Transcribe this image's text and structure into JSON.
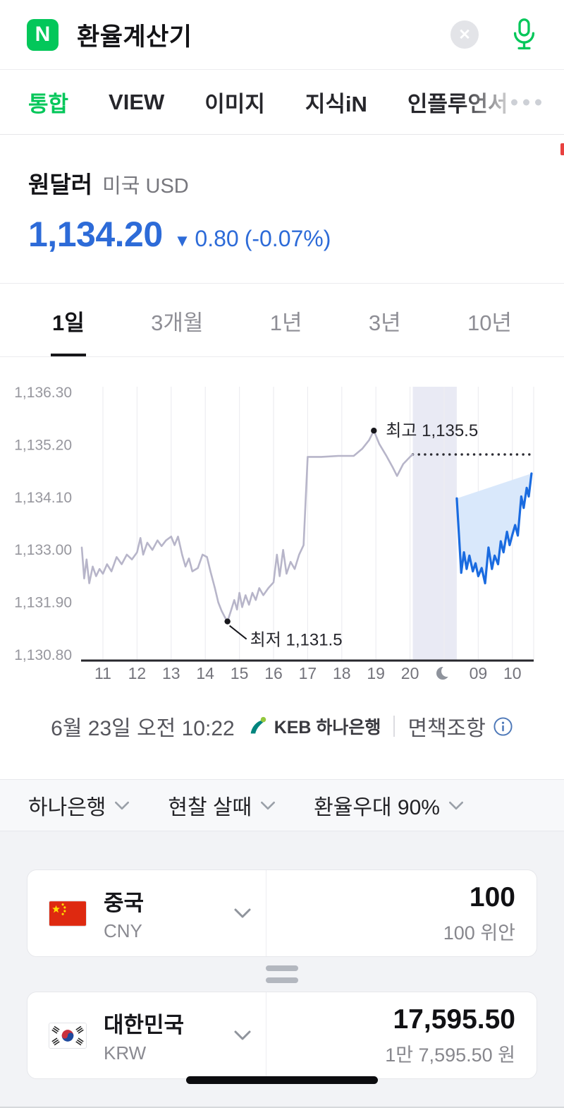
{
  "colors": {
    "naver_green": "#03c75a",
    "price_blue": "#2d6bd8",
    "previous_line": "#b7b5c9",
    "current_line": "#1a6be0",
    "current_fill": "#d9e8fb",
    "night_band": "#e9eaf4"
  },
  "icons": {
    "clear": "close-icon",
    "mic": "microphone-icon",
    "more": "ellipsis-dots-icon",
    "moon": "crescent-moon-icon",
    "info": "info-circle-icon",
    "swap": "equals-swap-icon",
    "chevron": "chevron-down-icon"
  },
  "header": {
    "logo_letter": "N",
    "query": "환율계산기"
  },
  "tabs": {
    "items": [
      {
        "label": "통합",
        "active": true
      },
      {
        "label": "VIEW",
        "active": false
      },
      {
        "label": "이미지",
        "active": false
      },
      {
        "label": "지식iN",
        "active": false
      },
      {
        "label": "인플루언서",
        "active": false
      }
    ]
  },
  "quote": {
    "title": "원달러",
    "subtitle": "미국 USD",
    "price": "1,134.20",
    "arrow": "▼",
    "change": "0.80",
    "change_pct": "(-0.07%)"
  },
  "period_tabs": [
    {
      "label": "1일",
      "active": true
    },
    {
      "label": "3개월",
      "active": false
    },
    {
      "label": "1년",
      "active": false
    },
    {
      "label": "3년",
      "active": false
    },
    {
      "label": "10년",
      "active": false
    }
  ],
  "chart_data": {
    "type": "line",
    "title": "원달러 1일 환율 추이",
    "y_ticks": [
      "1,136.30",
      "1,135.20",
      "1,134.10",
      "1,133.00",
      "1,131.90",
      "1,130.80"
    ],
    "y_values": [
      1136.3,
      1135.2,
      1134.1,
      1133.0,
      1131.9,
      1130.8
    ],
    "ylim": [
      1130.68,
      1136.42
    ],
    "x_ticks": [
      "11",
      "12",
      "13",
      "14",
      "15",
      "16",
      "17",
      "18",
      "19",
      "20",
      "moon",
      "09",
      "10"
    ],
    "night_band": [
      9.08,
      10.37
    ],
    "prev_close": 1135.0,
    "high": "1,135.5",
    "low": "1,131.5",
    "fill_color": "#d9e8fb",
    "night_color": "#e9eaf4",
    "annotations": [
      {
        "label": "최고 1,135.5",
        "x": 7.94,
        "y": 1135.5,
        "pos": "right"
      },
      {
        "label": "최저 1,131.5",
        "x": 3.65,
        "y": 1131.5,
        "pos": "below"
      }
    ],
    "series": [
      {
        "name": "previous-session",
        "color": "#b7b5c9",
        "width": 2.6,
        "points": [
          [
            -0.62,
            1133.05
          ],
          [
            -0.55,
            1132.4
          ],
          [
            -0.48,
            1132.8
          ],
          [
            -0.4,
            1132.3
          ],
          [
            -0.3,
            1132.65
          ],
          [
            -0.2,
            1132.45
          ],
          [
            -0.1,
            1132.6
          ],
          [
            0,
            1132.5
          ],
          [
            0.12,
            1132.7
          ],
          [
            0.25,
            1132.55
          ],
          [
            0.4,
            1132.85
          ],
          [
            0.55,
            1132.7
          ],
          [
            0.7,
            1132.9
          ],
          [
            0.85,
            1132.8
          ],
          [
            1.0,
            1132.95
          ],
          [
            1.1,
            1133.25
          ],
          [
            1.18,
            1132.9
          ],
          [
            1.3,
            1133.15
          ],
          [
            1.45,
            1133.0
          ],
          [
            1.6,
            1133.2
          ],
          [
            1.72,
            1133.08
          ],
          [
            1.85,
            1133.2
          ],
          [
            2.0,
            1133.28
          ],
          [
            2.1,
            1133.1
          ],
          [
            2.2,
            1133.28
          ],
          [
            2.32,
            1132.9
          ],
          [
            2.42,
            1132.65
          ],
          [
            2.52,
            1132.82
          ],
          [
            2.62,
            1132.55
          ],
          [
            2.78,
            1132.62
          ],
          [
            2.92,
            1132.9
          ],
          [
            3.05,
            1132.85
          ],
          [
            3.15,
            1132.55
          ],
          [
            3.28,
            1132.2
          ],
          [
            3.38,
            1131.9
          ],
          [
            3.48,
            1131.72
          ],
          [
            3.58,
            1131.58
          ],
          [
            3.65,
            1131.5
          ],
          [
            3.75,
            1131.72
          ],
          [
            3.85,
            1131.95
          ],
          [
            3.93,
            1131.75
          ],
          [
            4.0,
            1132.1
          ],
          [
            4.08,
            1131.8
          ],
          [
            4.18,
            1132.05
          ],
          [
            4.28,
            1131.85
          ],
          [
            4.38,
            1132.1
          ],
          [
            4.48,
            1131.95
          ],
          [
            4.58,
            1132.2
          ],
          [
            4.7,
            1132.05
          ],
          [
            4.85,
            1132.2
          ],
          [
            5.0,
            1132.32
          ],
          [
            5.1,
            1132.9
          ],
          [
            5.18,
            1132.45
          ],
          [
            5.28,
            1133.0
          ],
          [
            5.38,
            1132.5
          ],
          [
            5.5,
            1132.75
          ],
          [
            5.62,
            1132.6
          ],
          [
            5.75,
            1132.9
          ],
          [
            5.88,
            1133.1
          ],
          [
            6.0,
            1134.95
          ],
          [
            6.4,
            1134.95
          ],
          [
            6.9,
            1134.97
          ],
          [
            7.35,
            1134.97
          ],
          [
            7.6,
            1135.12
          ],
          [
            7.8,
            1135.3
          ],
          [
            7.94,
            1135.5
          ],
          [
            8.1,
            1135.22
          ],
          [
            8.3,
            1134.98
          ],
          [
            8.5,
            1134.72
          ],
          [
            8.62,
            1134.55
          ],
          [
            8.8,
            1134.8
          ],
          [
            9.0,
            1134.95
          ],
          [
            9.08,
            1135.0
          ]
        ]
      },
      {
        "name": "current-session",
        "color": "#1a6be0",
        "width": 3.2,
        "points": [
          [
            10.37,
            1134.08
          ],
          [
            10.5,
            1132.52
          ],
          [
            10.58,
            1132.95
          ],
          [
            10.66,
            1132.6
          ],
          [
            10.74,
            1132.88
          ],
          [
            10.84,
            1132.55
          ],
          [
            10.92,
            1132.72
          ],
          [
            11.0,
            1132.45
          ],
          [
            11.1,
            1132.62
          ],
          [
            11.2,
            1132.3
          ],
          [
            11.3,
            1133.05
          ],
          [
            11.4,
            1132.6
          ],
          [
            11.48,
            1132.88
          ],
          [
            11.58,
            1132.7
          ],
          [
            11.66,
            1133.18
          ],
          [
            11.74,
            1132.95
          ],
          [
            11.84,
            1133.38
          ],
          [
            11.92,
            1133.1
          ],
          [
            12.0,
            1133.32
          ],
          [
            12.08,
            1133.52
          ],
          [
            12.16,
            1133.3
          ],
          [
            12.26,
            1134.12
          ],
          [
            12.33,
            1133.88
          ],
          [
            12.42,
            1134.3
          ],
          [
            12.48,
            1134.12
          ],
          [
            12.56,
            1134.6
          ]
        ]
      }
    ]
  },
  "chart_footer": {
    "datetime": "6월 23일 오전 10:22",
    "provider": "KEB 하나은행",
    "disclaimer": "면책조항"
  },
  "filters": [
    {
      "label": "하나은행"
    },
    {
      "label": "현찰 살때"
    },
    {
      "label": "환율우대 90%"
    }
  ],
  "converter": {
    "from": {
      "country": "중국",
      "code": "CNY",
      "amount": "100",
      "caption": "100 위안"
    },
    "to": {
      "country": "대한민국",
      "code": "KRW",
      "amount": "17,595.50",
      "caption": "1만 7,595.50 원"
    }
  }
}
